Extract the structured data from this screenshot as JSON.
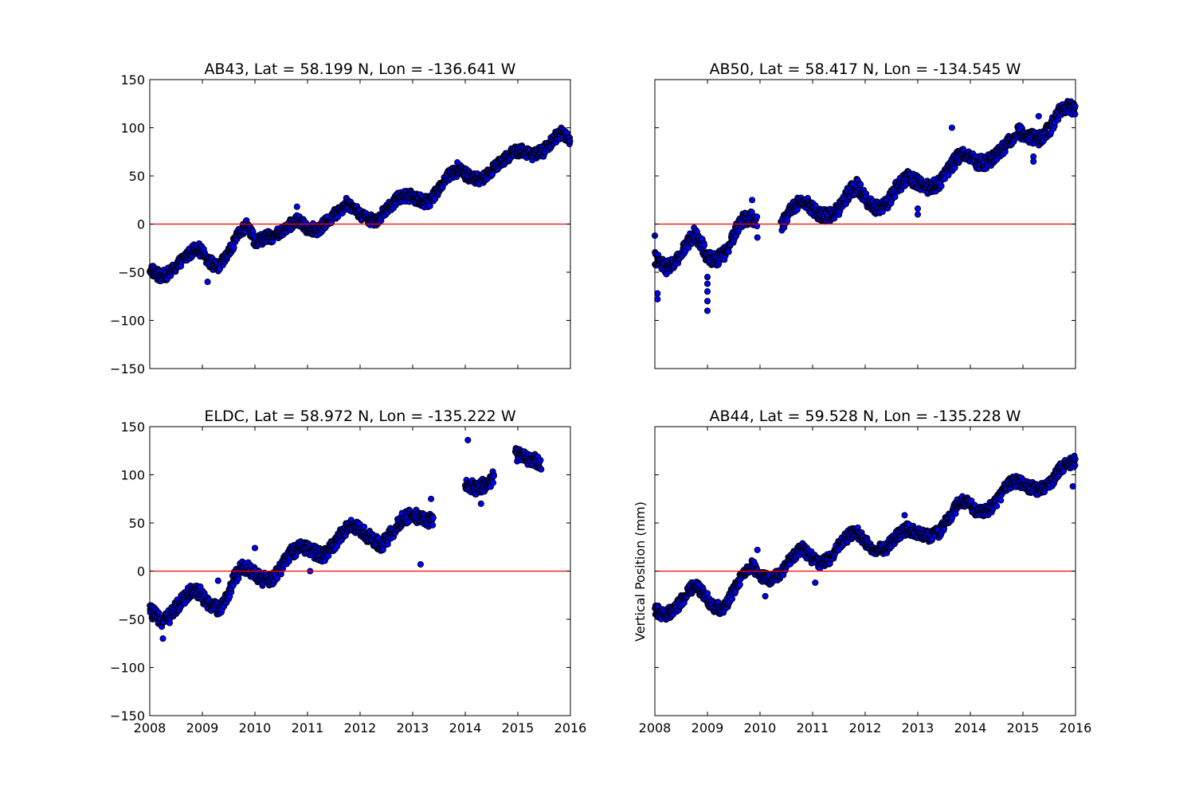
{
  "colors": {
    "marker_fill": "#0000ff",
    "marker_edge": "#000000",
    "zero_line": "#ff0000"
  },
  "chart_data": [
    {
      "type": "scatter",
      "title": "AB43, Lat = 58.199 N, Lon = -136.641 W",
      "xlabel": "",
      "ylabel": "",
      "xlim": [
        2008,
        2016
      ],
      "ylim": [
        -150,
        150
      ],
      "xticks": [],
      "yticks": [
        "150",
        "100",
        "50",
        "0",
        "−50",
        "−100",
        "−150"
      ],
      "hline": 0,
      "grid": false,
      "series": [
        {
          "points": [
            [
              2008.0,
              -46
            ],
            [
              2008.2,
              -55
            ],
            [
              2008.4,
              -50
            ],
            [
              2008.6,
              -38
            ],
            [
              2008.8,
              -28
            ],
            [
              2008.9,
              -24
            ],
            [
              2009.1,
              -36
            ],
            [
              2009.2,
              -42
            ],
            [
              2009.3,
              -46
            ],
            [
              2009.5,
              -30
            ],
            [
              2009.7,
              -10
            ],
            [
              2009.85,
              0
            ],
            [
              2010.0,
              -18
            ],
            [
              2010.2,
              -14
            ],
            [
              2010.4,
              -12
            ],
            [
              2010.6,
              -4
            ],
            [
              2010.8,
              4
            ],
            [
              2011.0,
              -4
            ],
            [
              2011.2,
              -6
            ],
            [
              2011.4,
              4
            ],
            [
              2011.6,
              14
            ],
            [
              2011.75,
              22
            ],
            [
              2011.9,
              16
            ],
            [
              2012.1,
              6
            ],
            [
              2012.3,
              4
            ],
            [
              2012.5,
              14
            ],
            [
              2012.7,
              26
            ],
            [
              2012.9,
              30
            ],
            [
              2013.1,
              26
            ],
            [
              2013.3,
              22
            ],
            [
              2013.5,
              38
            ],
            [
              2013.7,
              52
            ],
            [
              2013.9,
              56
            ],
            [
              2014.1,
              48
            ],
            [
              2014.3,
              46
            ],
            [
              2014.5,
              56
            ],
            [
              2014.7,
              66
            ],
            [
              2014.9,
              74
            ],
            [
              2015.1,
              76
            ],
            [
              2015.3,
              72
            ],
            [
              2015.5,
              76
            ],
            [
              2015.7,
              90
            ],
            [
              2015.85,
              95
            ],
            [
              2016.0,
              88
            ]
          ],
          "spread": 6,
          "outliers": [
            [
              2009.1,
              -60
            ],
            [
              2010.8,
              18
            ],
            [
              2013.85,
              64
            ]
          ]
        }
      ]
    },
    {
      "type": "scatter",
      "title": "AB50, Lat = 58.417 N, Lon = -134.545 W",
      "xlabel": "",
      "ylabel": "",
      "xlim": [
        2008,
        2016
      ],
      "ylim": [
        -150,
        150
      ],
      "xticks": [],
      "yticks": [],
      "hline": 0,
      "grid": false,
      "series": [
        {
          "points": [
            [
              2008.0,
              -35
            ],
            [
              2008.2,
              -46
            ],
            [
              2008.4,
              -40
            ],
            [
              2008.6,
              -22
            ],
            [
              2008.75,
              -10
            ],
            [
              2008.9,
              -22
            ],
            [
              2009.0,
              -35
            ],
            [
              2009.2,
              -36
            ],
            [
              2009.4,
              -26
            ],
            [
              2009.55,
              -6
            ],
            [
              2009.7,
              6
            ],
            [
              2009.85,
              6
            ],
            [
              2009.95,
              2
            ],
            [
              null,
              null
            ],
            [
              2010.4,
              -2
            ],
            [
              2010.6,
              16
            ],
            [
              2010.8,
              26
            ],
            [
              2010.95,
              18
            ],
            [
              2011.1,
              10
            ],
            [
              2011.3,
              8
            ],
            [
              2011.5,
              16
            ],
            [
              2011.7,
              34
            ],
            [
              2011.85,
              40
            ],
            [
              2012.0,
              26
            ],
            [
              2012.2,
              16
            ],
            [
              2012.4,
              20
            ],
            [
              2012.6,
              38
            ],
            [
              2012.8,
              48
            ],
            [
              2013.0,
              44
            ],
            [
              2013.2,
              38
            ],
            [
              2013.4,
              42
            ],
            [
              2013.6,
              58
            ],
            [
              2013.8,
              72
            ],
            [
              2013.95,
              74
            ],
            [
              2014.1,
              64
            ],
            [
              2014.3,
              64
            ],
            [
              2014.5,
              72
            ],
            [
              2014.7,
              84
            ],
            [
              2014.9,
              96
            ],
            [
              2015.1,
              92
            ],
            [
              2015.3,
              88
            ],
            [
              2015.5,
              98
            ],
            [
              2015.7,
              118
            ],
            [
              2015.85,
              124
            ],
            [
              2016.0,
              118
            ]
          ],
          "spread": 7,
          "outliers": [
            [
              2008.0,
              -12
            ],
            [
              2008.05,
              -78
            ],
            [
              2008.05,
              -72
            ],
            [
              2009.0,
              -90
            ],
            [
              2009.0,
              -80
            ],
            [
              2009.0,
              -70
            ],
            [
              2009.0,
              -62
            ],
            [
              2009.0,
              -55
            ],
            [
              2009.95,
              -14
            ],
            [
              2009.85,
              25
            ],
            [
              2013.0,
              10
            ],
            [
              2013.0,
              16
            ],
            [
              2013.65,
              100
            ],
            [
              2015.2,
              70
            ],
            [
              2015.2,
              65
            ],
            [
              2015.3,
              112
            ]
          ]
        }
      ]
    },
    {
      "type": "scatter",
      "title": "ELDC, Lat = 58.972 N, Lon = -135.222 W",
      "xlabel": "",
      "ylabel": "",
      "xlim": [
        2008,
        2016
      ],
      "ylim": [
        -150,
        150
      ],
      "xticks": [
        "2008",
        "2009",
        "2010",
        "2011",
        "2012",
        "2013",
        "2014",
        "2015",
        "2016"
      ],
      "yticks": [
        "150",
        "100",
        "50",
        "0",
        "−50",
        "−100",
        "−150"
      ],
      "hline": 0,
      "grid": false,
      "series": [
        {
          "points": [
            [
              2008.0,
              -40
            ],
            [
              2008.2,
              -52
            ],
            [
              2008.4,
              -46
            ],
            [
              2008.6,
              -30
            ],
            [
              2008.8,
              -20
            ],
            [
              2008.95,
              -22
            ],
            [
              2009.1,
              -34
            ],
            [
              2009.3,
              -40
            ],
            [
              2009.45,
              -30
            ],
            [
              2009.6,
              -8
            ],
            [
              2009.75,
              4
            ],
            [
              2009.9,
              2
            ],
            [
              2010.1,
              -8
            ],
            [
              2010.3,
              -10
            ],
            [
              2010.5,
              4
            ],
            [
              2010.7,
              20
            ],
            [
              2010.9,
              26
            ],
            [
              2011.1,
              20
            ],
            [
              2011.3,
              16
            ],
            [
              2011.5,
              28
            ],
            [
              2011.7,
              42
            ],
            [
              2011.85,
              48
            ],
            [
              2012.0,
              44
            ],
            [
              2012.2,
              34
            ],
            [
              2012.4,
              26
            ],
            [
              2012.6,
              40
            ],
            [
              2012.8,
              54
            ],
            [
              2013.0,
              58
            ],
            [
              2013.2,
              54
            ],
            [
              2013.4,
              52
            ],
            [
              null,
              null
            ],
            [
              2014.0,
              92
            ],
            [
              2014.2,
              86
            ],
            [
              2014.4,
              90
            ],
            [
              2014.55,
              98
            ],
            [
              null,
              null
            ],
            [
              2014.95,
              122
            ],
            [
              2015.1,
              118
            ],
            [
              2015.3,
              116
            ],
            [
              2015.45,
              112
            ]
          ],
          "spread": 7,
          "outliers": [
            [
              2008.25,
              -70
            ],
            [
              2009.3,
              -10
            ],
            [
              2010.0,
              24
            ],
            [
              2011.05,
              0
            ],
            [
              2013.15,
              7
            ],
            [
              2013.35,
              75
            ],
            [
              2014.05,
              136
            ],
            [
              2014.3,
              70
            ]
          ]
        }
      ]
    },
    {
      "type": "scatter",
      "title": "AB44, Lat = 59.528 N, Lon = -135.228 W",
      "xlabel": "",
      "ylabel": "Vertical Position (mm)",
      "xlim": [
        2008,
        2016
      ],
      "ylim": [
        -150,
        150
      ],
      "xticks": [
        "2008",
        "2009",
        "2010",
        "2011",
        "2012",
        "2013",
        "2014",
        "2015",
        "2016"
      ],
      "yticks": [],
      "hline": 0,
      "grid": false,
      "series": [
        {
          "points": [
            [
              2008.0,
              -40
            ],
            [
              2008.2,
              -46
            ],
            [
              2008.4,
              -38
            ],
            [
              2008.6,
              -24
            ],
            [
              2008.75,
              -14
            ],
            [
              2008.9,
              -22
            ],
            [
              2009.1,
              -36
            ],
            [
              2009.3,
              -40
            ],
            [
              2009.5,
              -20
            ],
            [
              2009.7,
              0
            ],
            [
              2009.85,
              6
            ],
            [
              2010.0,
              -4
            ],
            [
              2010.2,
              -10
            ],
            [
              2010.4,
              -2
            ],
            [
              2010.6,
              14
            ],
            [
              2010.8,
              24
            ],
            [
              2010.95,
              16
            ],
            [
              2011.1,
              8
            ],
            [
              2011.3,
              12
            ],
            [
              2011.5,
              26
            ],
            [
              2011.7,
              38
            ],
            [
              2011.85,
              40
            ],
            [
              2012.0,
              30
            ],
            [
              2012.2,
              22
            ],
            [
              2012.4,
              24
            ],
            [
              2012.6,
              36
            ],
            [
              2012.8,
              44
            ],
            [
              2013.0,
              40
            ],
            [
              2013.2,
              36
            ],
            [
              2013.4,
              40
            ],
            [
              2013.6,
              56
            ],
            [
              2013.8,
              72
            ],
            [
              2013.95,
              72
            ],
            [
              2014.1,
              62
            ],
            [
              2014.3,
              62
            ],
            [
              2014.5,
              72
            ],
            [
              2014.7,
              90
            ],
            [
              2014.9,
              94
            ],
            [
              2015.1,
              88
            ],
            [
              2015.3,
              84
            ],
            [
              2015.5,
              90
            ],
            [
              2015.7,
              106
            ],
            [
              2015.85,
              112
            ],
            [
              2016.0,
              114
            ]
          ],
          "spread": 6,
          "outliers": [
            [
              2009.95,
              22
            ],
            [
              2010.1,
              -26
            ],
            [
              2011.05,
              -12
            ],
            [
              2012.75,
              58
            ],
            [
              2015.95,
              88
            ]
          ]
        }
      ]
    }
  ]
}
